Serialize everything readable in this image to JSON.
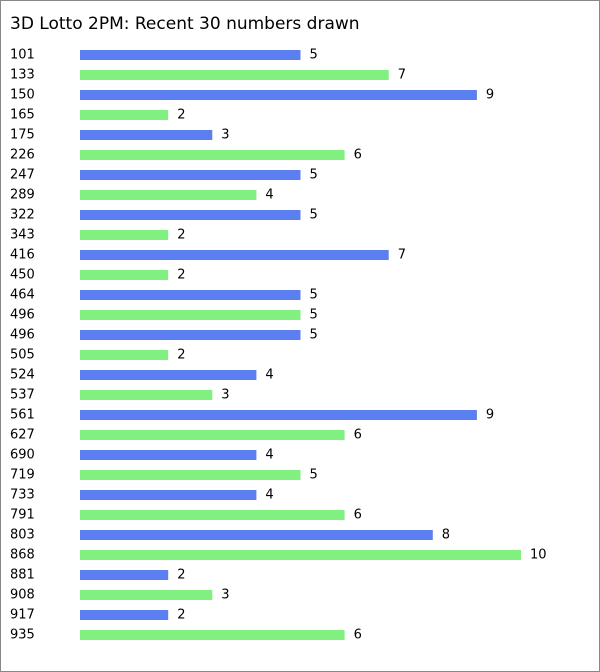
{
  "chart_data": {
    "type": "barh",
    "title": "3D Lotto 2PM: Recent 30 numbers drawn",
    "categories": [
      "101",
      "133",
      "150",
      "165",
      "175",
      "226",
      "247",
      "289",
      "322",
      "343",
      "416",
      "450",
      "464",
      "496",
      "496",
      "505",
      "524",
      "537",
      "561",
      "627",
      "690",
      "719",
      "733",
      "791",
      "803",
      "868",
      "881",
      "908",
      "917",
      "935"
    ],
    "values": [
      5,
      7,
      9,
      2,
      3,
      6,
      5,
      4,
      5,
      2,
      7,
      2,
      5,
      5,
      5,
      2,
      4,
      3,
      9,
      6,
      4,
      5,
      4,
      6,
      8,
      10,
      2,
      3,
      2,
      6
    ],
    "colors": [
      "#5b7ff0",
      "#80f080"
    ]
  }
}
